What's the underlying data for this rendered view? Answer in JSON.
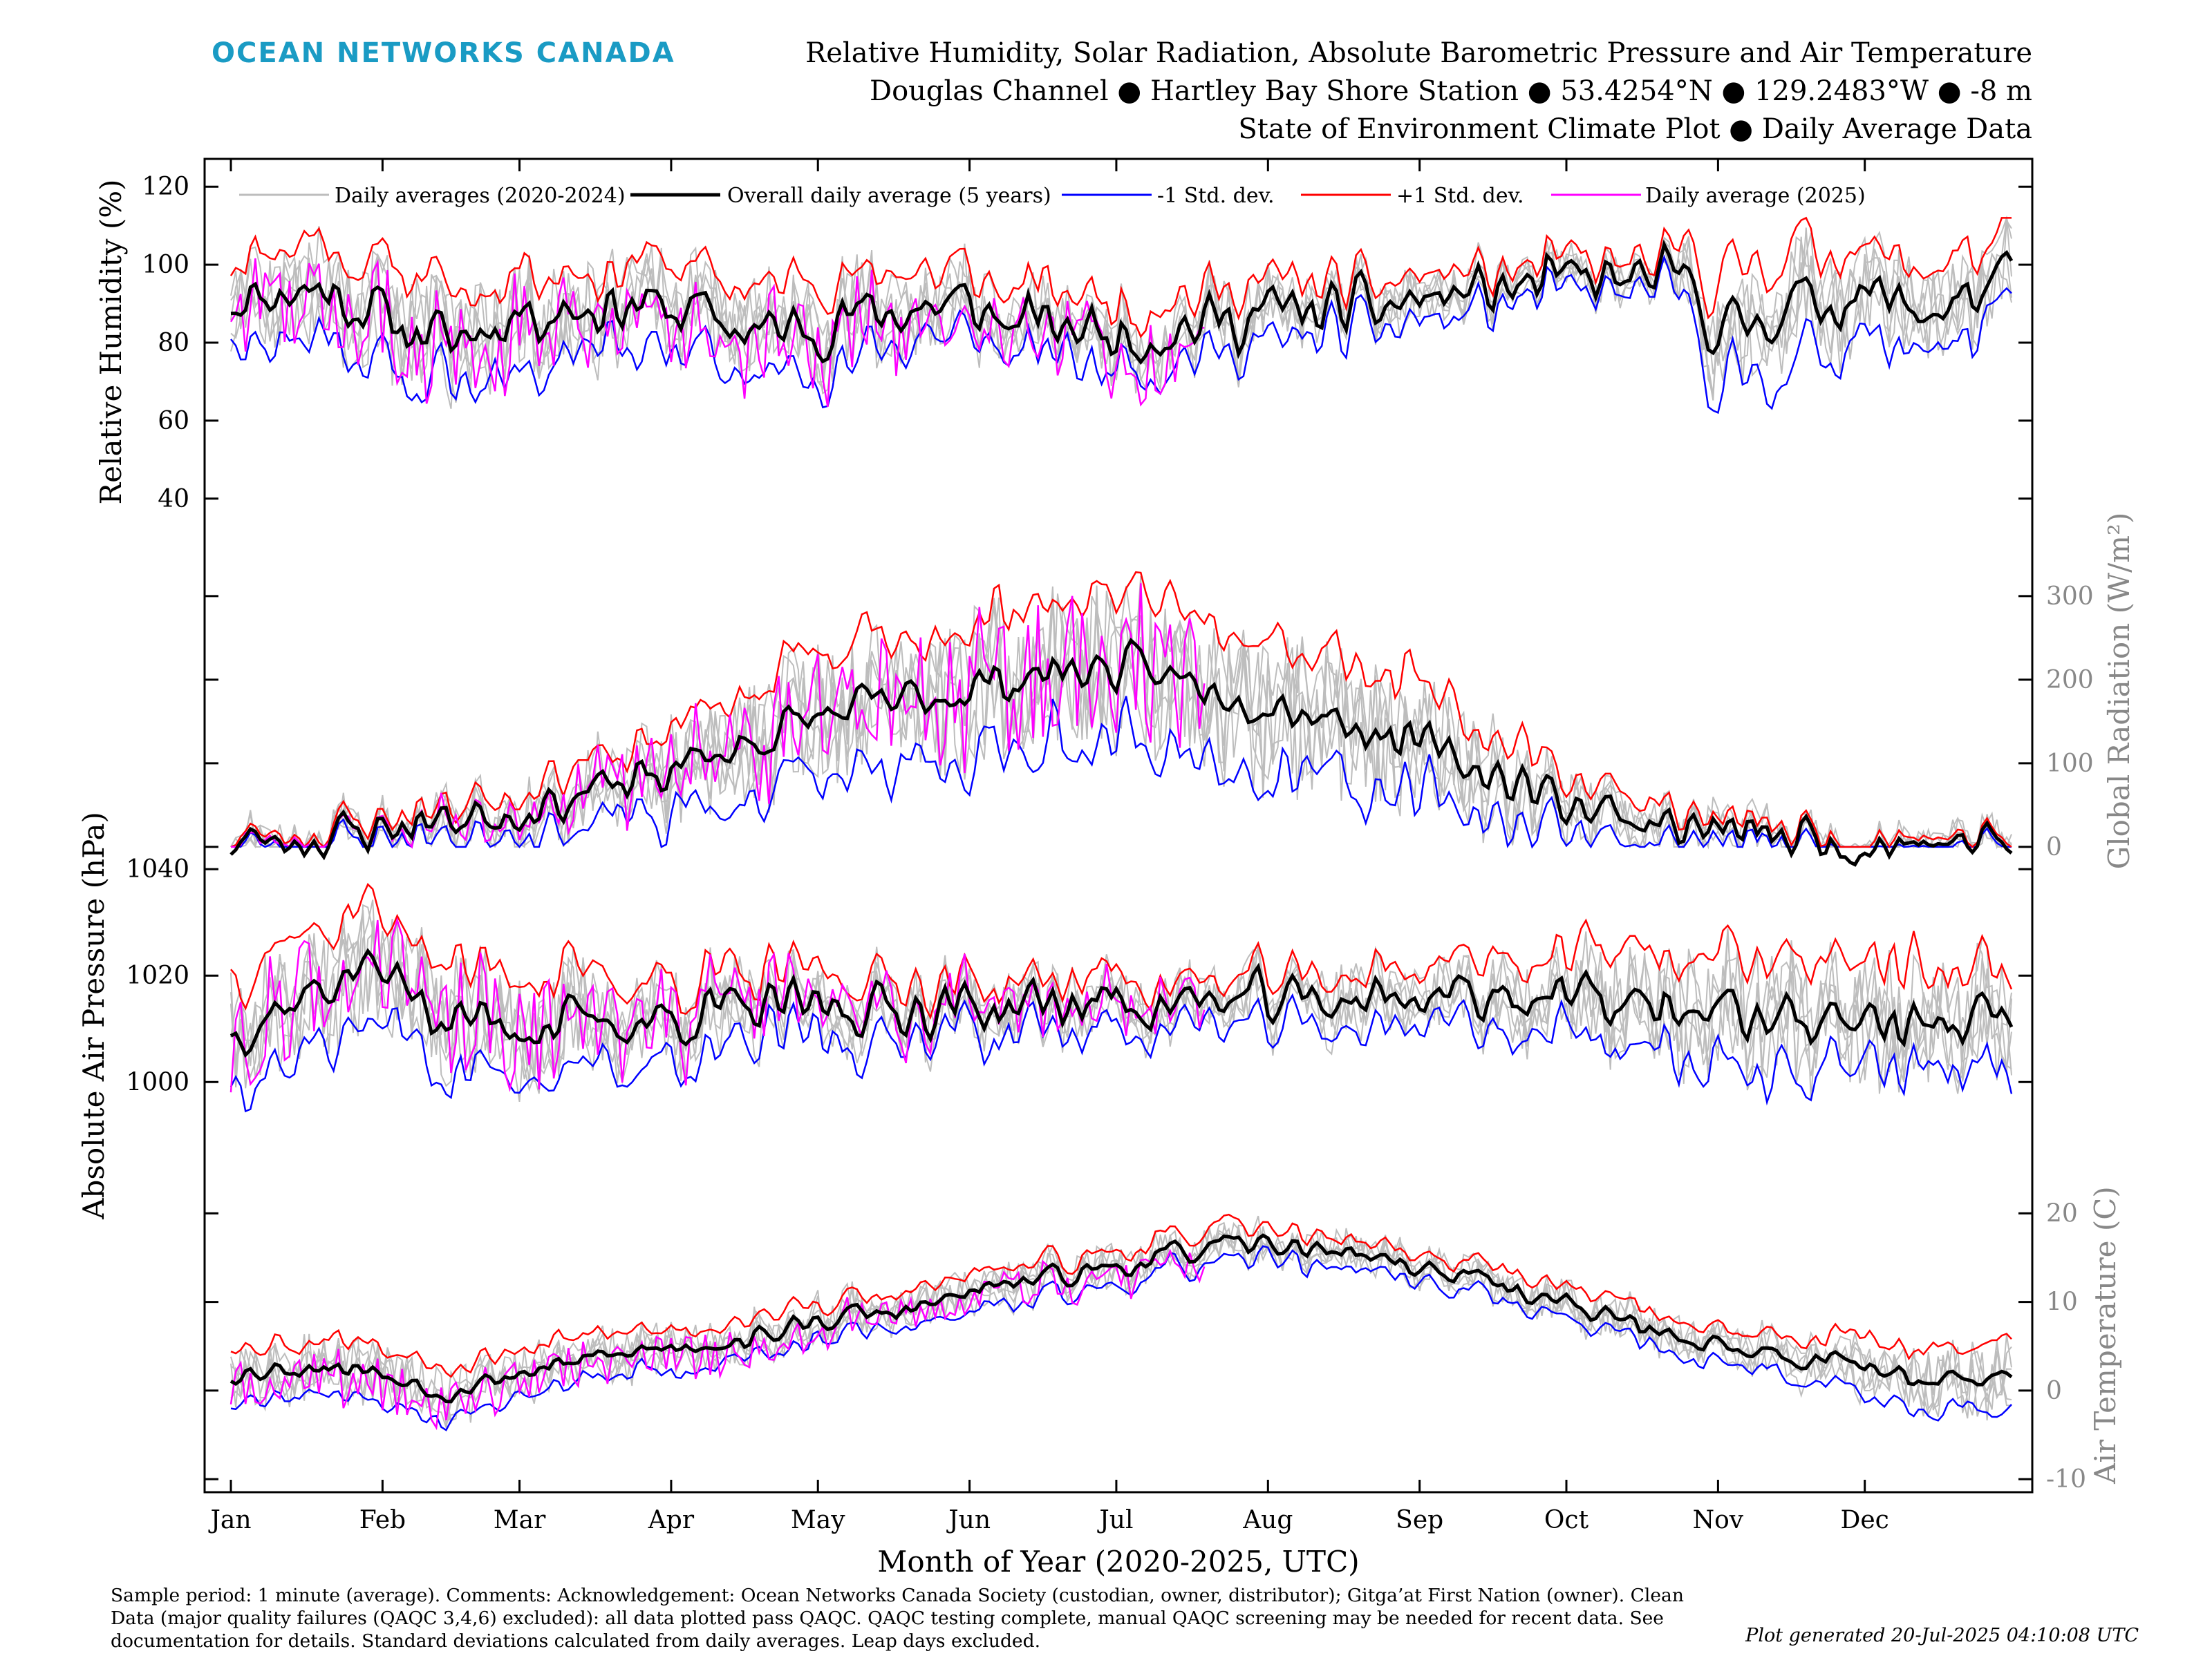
{
  "header": {
    "brand": "OCEAN NETWORKS CANADA",
    "title_line1": "Relative Humidity, Solar Radiation, Absolute Barometric Pressure and Air Temperature",
    "title_line2": "Douglas Channel ● Hartley Bay Shore Station ● 53.4254°N ● 129.2483°W ● -8 m",
    "title_line3": "State of Environment Climate Plot ● Daily Average Data"
  },
  "footer": {
    "line1": "Sample period: 1 minute (average). Comments: Acknowledgement: Ocean Networks Canada Society (custodian, owner, distributor); Gitga’at First Nation (owner). Clean",
    "line2": "Data (major quality failures (QAQC 3,4,6) excluded): all data plotted pass QAQC. QAQC testing complete, manual QAQC screening may be needed for recent data. See",
    "line3": "documentation for details. Standard deviations calculated from daily averages. Leap days excluded.",
    "generated": "Plot generated 20-Jul-2025 04:10:08 UTC"
  },
  "colors": {
    "hist": "#bdbdbd",
    "mean": "#000000",
    "minus_sd": "#0000ff",
    "plus_sd": "#ff0000",
    "current": "#ff00ff",
    "right_axis": "#888888"
  },
  "chart_data": {
    "type": "line",
    "x_axis": {
      "label": "Month of Year (2020-2025, UTC)",
      "unit": "day of year",
      "range": [
        1,
        365
      ],
      "ticks": [
        1,
        32,
        60,
        91,
        121,
        152,
        182,
        213,
        244,
        274,
        305,
        335
      ],
      "tick_labels": [
        "Jan",
        "Feb",
        "Mar",
        "Apr",
        "May",
        "Jun",
        "Jul",
        "Aug",
        "Sep",
        "Oct",
        "Nov",
        "Dec"
      ]
    },
    "legend": {
      "placement": "top",
      "entries": [
        "Daily averages (2020-2024)",
        "Overall daily average (5 years)",
        "-1 Std. dev.",
        "+1 Std. dev.",
        "Daily average (2025)"
      ]
    },
    "current_year_end_day": 200,
    "panels": [
      {
        "id": "humidity",
        "ylabel": "Relative Humidity (%)",
        "axis_side": "left",
        "ylim": [
          35,
          125
        ],
        "ticks": [
          40,
          60,
          80,
          100,
          120
        ],
        "mean_anchors": [
          [
            1,
            92
          ],
          [
            20,
            94
          ],
          [
            35,
            85
          ],
          [
            45,
            80
          ],
          [
            60,
            88
          ],
          [
            80,
            90
          ],
          [
            95,
            88
          ],
          [
            110,
            82
          ],
          [
            121,
            85
          ],
          [
            135,
            88
          ],
          [
            150,
            90
          ],
          [
            160,
            85
          ],
          [
            175,
            84
          ],
          [
            185,
            82
          ],
          [
            200,
            85
          ],
          [
            215,
            88
          ],
          [
            230,
            88
          ],
          [
            240,
            90
          ],
          [
            250,
            92
          ],
          [
            270,
            95
          ],
          [
            290,
            96
          ],
          [
            300,
            95
          ],
          [
            305,
            82
          ],
          [
            320,
            90
          ],
          [
            335,
            92
          ],
          [
            350,
            88
          ],
          [
            365,
            96
          ]
        ],
        "sd_anchors": [
          [
            1,
            10
          ],
          [
            30,
            13
          ],
          [
            60,
            12
          ],
          [
            100,
            10
          ],
          [
            120,
            12
          ],
          [
            150,
            8
          ],
          [
            180,
            8
          ],
          [
            210,
            7
          ],
          [
            240,
            6
          ],
          [
            270,
            4
          ],
          [
            295,
            4
          ],
          [
            305,
            14
          ],
          [
            330,
            12
          ],
          [
            365,
            10
          ]
        ],
        "clip": [
          40,
          112
        ],
        "noise_amp": 6,
        "hist_extra": 5,
        "current_offset": -3,
        "seed": 11
      },
      {
        "id": "radiation",
        "ylabel": "Global Radiation (W/m²)",
        "axis_side": "right",
        "ylim": [
          -10,
          380
        ],
        "ticks": [
          0,
          100,
          200,
          300
        ],
        "mean_anchors": [
          [
            1,
            5
          ],
          [
            20,
            12
          ],
          [
            40,
            30
          ],
          [
            60,
            45
          ],
          [
            80,
            70
          ],
          [
            100,
            110
          ],
          [
            121,
            155
          ],
          [
            140,
            175
          ],
          [
            160,
            200
          ],
          [
            175,
            215
          ],
          [
            185,
            210
          ],
          [
            200,
            195
          ],
          [
            215,
            175
          ],
          [
            230,
            150
          ],
          [
            244,
            120
          ],
          [
            260,
            85
          ],
          [
            274,
            55
          ],
          [
            290,
            32
          ],
          [
            305,
            18
          ],
          [
            320,
            10
          ],
          [
            335,
            6
          ],
          [
            365,
            5
          ]
        ],
        "sd_anchors": [
          [
            1,
            5
          ],
          [
            40,
            15
          ],
          [
            80,
            40
          ],
          [
            121,
            70
          ],
          [
            160,
            85
          ],
          [
            200,
            80
          ],
          [
            240,
            70
          ],
          [
            274,
            35
          ],
          [
            305,
            12
          ],
          [
            365,
            5
          ]
        ],
        "clip": [
          0,
          370
        ],
        "noise_amp": 22,
        "hist_extra": 40,
        "current_offset": 0,
        "seed": 23
      },
      {
        "id": "pressure",
        "ylabel": "Absolute Air Pressure (hPa)",
        "axis_side": "left",
        "ylim": [
          982,
          1043
        ],
        "ticks": [
          1000,
          1020,
          1040
        ],
        "mean_anchors": [
          [
            1,
            1010
          ],
          [
            20,
            1018
          ],
          [
            30,
            1022
          ],
          [
            45,
            1012
          ],
          [
            60,
            1011
          ],
          [
            80,
            1011
          ],
          [
            100,
            1013
          ],
          [
            121,
            1014
          ],
          [
            150,
            1014
          ],
          [
            180,
            1015
          ],
          [
            210,
            1015
          ],
          [
            240,
            1016
          ],
          [
            260,
            1017
          ],
          [
            280,
            1015
          ],
          [
            305,
            1013
          ],
          [
            320,
            1012
          ],
          [
            335,
            1012
          ],
          [
            350,
            1010
          ],
          [
            365,
            1013
          ]
        ],
        "sd_anchors": [
          [
            1,
            10
          ],
          [
            30,
            11
          ],
          [
            60,
            9
          ],
          [
            100,
            7
          ],
          [
            121,
            6
          ],
          [
            160,
            5
          ],
          [
            200,
            4
          ],
          [
            240,
            5
          ],
          [
            270,
            7
          ],
          [
            305,
            11
          ],
          [
            335,
            10
          ],
          [
            365,
            10
          ]
        ],
        "clip": [
          984,
          1040
        ],
        "noise_amp": 4,
        "hist_extra": 5,
        "current_offset": 0,
        "seed": 37
      },
      {
        "id": "temperature",
        "ylabel": "Air Temperature (C)",
        "axis_side": "right",
        "ylim": [
          -11,
          24
        ],
        "ticks": [
          -10,
          0,
          10,
          20
        ],
        "mean_anchors": [
          [
            1,
            2
          ],
          [
            20,
            3
          ],
          [
            32,
            2
          ],
          [
            45,
            0
          ],
          [
            60,
            2
          ],
          [
            80,
            4
          ],
          [
            91,
            5
          ],
          [
            110,
            6
          ],
          [
            121,
            8
          ],
          [
            140,
            9
          ],
          [
            152,
            11
          ],
          [
            170,
            13
          ],
          [
            182,
            14
          ],
          [
            200,
            16
          ],
          [
            213,
            16.5
          ],
          [
            225,
            16
          ],
          [
            244,
            14
          ],
          [
            260,
            12
          ],
          [
            274,
            10
          ],
          [
            290,
            7
          ],
          [
            305,
            5
          ],
          [
            320,
            4
          ],
          [
            335,
            3
          ],
          [
            350,
            1
          ],
          [
            365,
            1
          ]
        ],
        "sd_anchors": [
          [
            1,
            3
          ],
          [
            32,
            3
          ],
          [
            60,
            2.5
          ],
          [
            121,
            2
          ],
          [
            182,
            2
          ],
          [
            244,
            1.5
          ],
          [
            274,
            2
          ],
          [
            305,
            2
          ],
          [
            335,
            3
          ],
          [
            365,
            4
          ]
        ],
        "clip": [
          -11,
          23
        ],
        "noise_amp": 1,
        "hist_extra": 2,
        "current_offset": -0.8,
        "seed": 53
      }
    ]
  }
}
